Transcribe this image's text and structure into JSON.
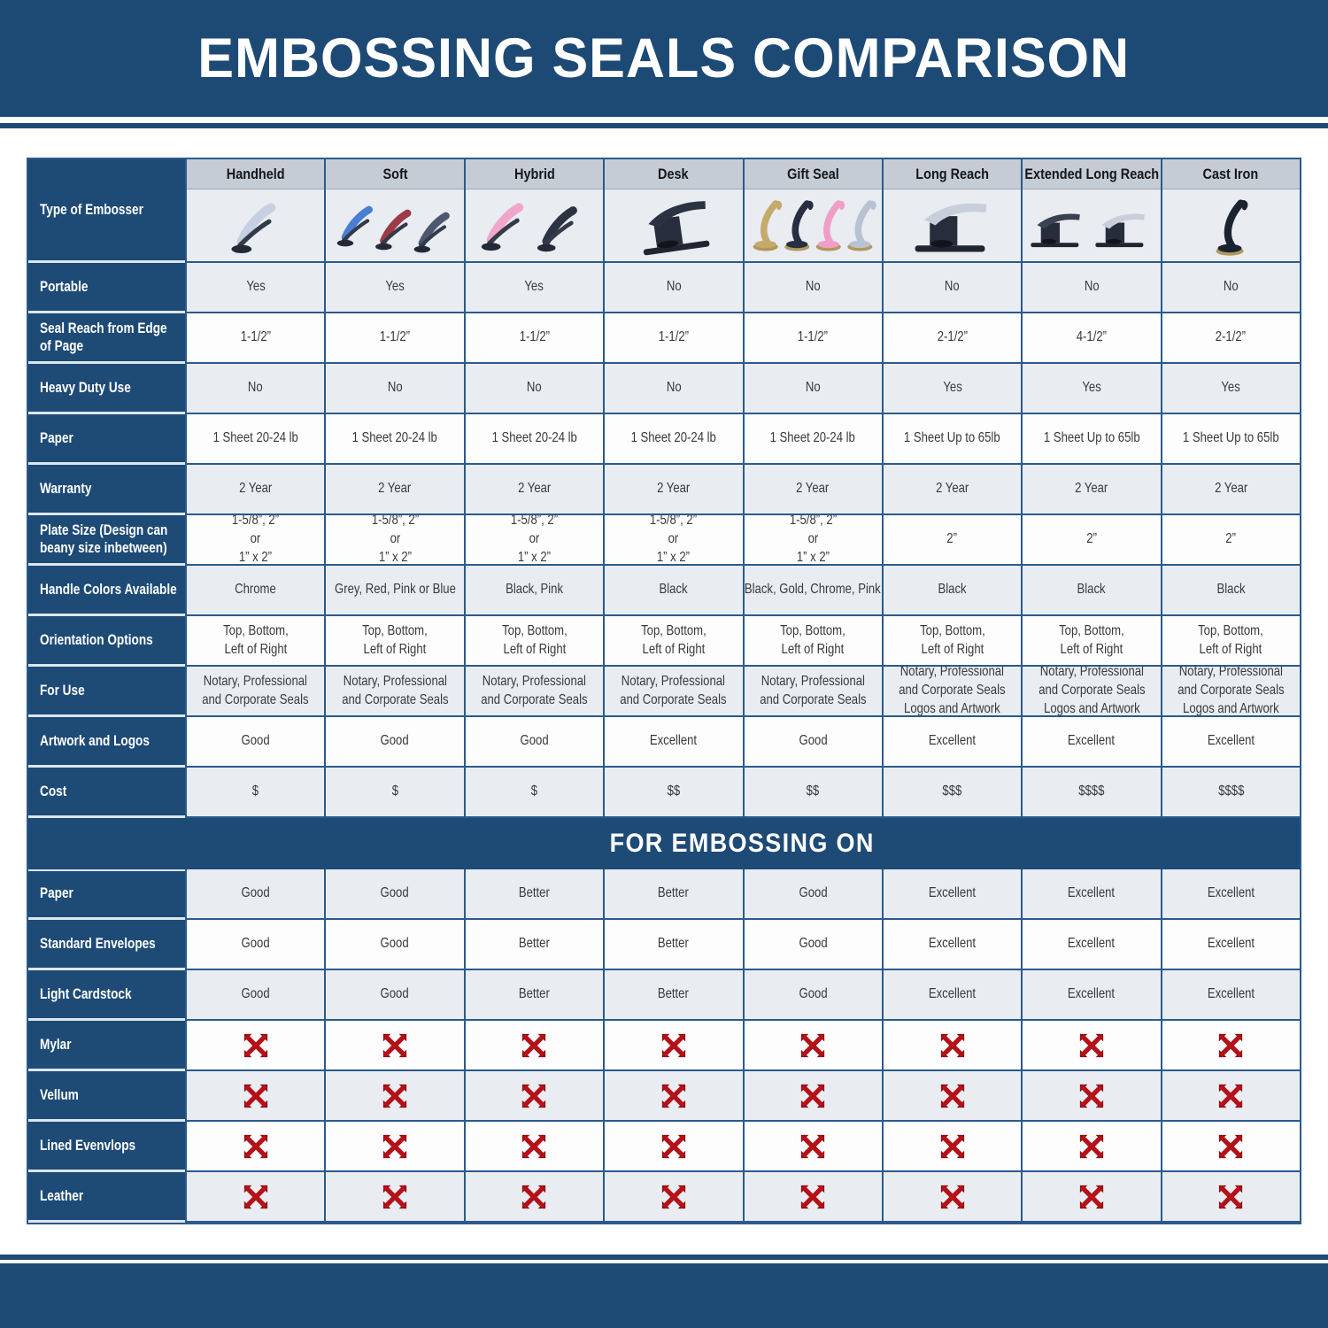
{
  "banner": {
    "title": "EMBOSSING SEALS COMPARISON"
  },
  "table": {
    "corner": "Type of Embosser",
    "columns": [
      {
        "label": "Handheld",
        "image": "handheld-embosser-image"
      },
      {
        "label": "Soft",
        "image": "soft-embosser-image"
      },
      {
        "label": "Hybrid",
        "image": "hybrid-embosser-image"
      },
      {
        "label": "Desk",
        "image": "desk-embosser-image"
      },
      {
        "label": "Gift Seal",
        "image": "gift-seal-embosser-image"
      },
      {
        "label": "Long Reach",
        "image": "long-reach-embosser-image"
      },
      {
        "label": "Extended Long Reach",
        "image": "extended-long-reach-embosser-image"
      },
      {
        "label": "Cast Iron",
        "image": "cast-iron-embosser-image"
      }
    ],
    "spec_rows": [
      {
        "label": "Portable",
        "values": [
          "Yes",
          "Yes",
          "Yes",
          "No",
          "No",
          "No",
          "No",
          "No"
        ]
      },
      {
        "label": "Seal Reach from Edge\nof Page",
        "values": [
          "1-1/2”",
          "1-1/2”",
          "1-1/2”",
          "1-1/2”",
          "1-1/2”",
          "2-1/2”",
          "4-1/2”",
          "2-1/2”"
        ]
      },
      {
        "label": "Heavy Duty Use",
        "values": [
          "No",
          "No",
          "No",
          "No",
          "No",
          "Yes",
          "Yes",
          "Yes"
        ]
      },
      {
        "label": "Paper",
        "values": [
          "1 Sheet 20-24 lb",
          "1 Sheet 20-24 lb",
          "1 Sheet 20-24 lb",
          "1 Sheet 20-24 lb",
          "1 Sheet 20-24 lb",
          "1 Sheet Up to 65lb",
          "1 Sheet Up to 65lb",
          "1 Sheet Up to 65lb"
        ]
      },
      {
        "label": "Warranty",
        "values": [
          "2 Year",
          "2 Year",
          "2 Year",
          "2 Year",
          "2 Year",
          "2 Year",
          "2 Year",
          "2 Year"
        ]
      },
      {
        "label": "Plate Size (Design can\nbeany size inbetween)",
        "values": [
          "1-5/8”, 2”\nor\n1” x 2”",
          "1-5/8”, 2”\nor\n1” x 2”",
          "1-5/8”, 2”\nor\n1” x 2”",
          "1-5/8”, 2”\nor\n1” x 2”",
          "1-5/8”, 2”\nor\n1” x 2”",
          "2”",
          "2”",
          "2”"
        ]
      },
      {
        "label": "Handle Colors Available",
        "values": [
          "Chrome",
          "Grey, Red, Pink or Blue",
          "Black, Pink",
          "Black",
          "Black, Gold, Chrome, Pink",
          "Black",
          "Black",
          "Black"
        ]
      },
      {
        "label": "Orientation Options",
        "values": [
          "Top, Bottom,\nLeft of Right",
          "Top, Bottom,\nLeft of Right",
          "Top, Bottom,\nLeft of Right",
          "Top, Bottom,\nLeft of Right",
          "Top, Bottom,\nLeft of Right",
          "Top, Bottom,\nLeft of Right",
          "Top, Bottom,\nLeft of Right",
          "Top, Bottom,\nLeft of Right"
        ]
      },
      {
        "label": "For Use",
        "values": [
          "Notary, Professional\nand Corporate Seals",
          "Notary, Professional\nand Corporate Seals",
          "Notary, Professional\nand Corporate Seals",
          "Notary, Professional\nand Corporate Seals",
          "Notary, Professional\nand Corporate Seals",
          "Notary, Professional\nand Corporate Seals\nLogos and Artwork",
          "Notary, Professional\nand Corporate Seals\nLogos and Artwork",
          "Notary, Professional\nand Corporate Seals\nLogos and Artwork"
        ]
      },
      {
        "label": "Artwork and Logos",
        "values": [
          "Good",
          "Good",
          "Good",
          "Excellent",
          "Good",
          "Excellent",
          "Excellent",
          "Excellent"
        ]
      },
      {
        "label": "Cost",
        "values": [
          "$",
          "$",
          "$",
          "$$",
          "$$",
          "$$$",
          "$$$$",
          "$$$$"
        ]
      }
    ],
    "section_header": "FOR EMBOSSING ON",
    "embossing_rows": [
      {
        "label": "Paper",
        "values": [
          "Good",
          "Good",
          "Better",
          "Better",
          "Good",
          "Excellent",
          "Excellent",
          "Excellent"
        ]
      },
      {
        "label": "Standard Envelopes",
        "values": [
          "Good",
          "Good",
          "Better",
          "Better",
          "Good",
          "Excellent",
          "Excellent",
          "Excellent"
        ]
      },
      {
        "label": "Light Cardstock",
        "values": [
          "Good",
          "Good",
          "Better",
          "Better",
          "Good",
          "Excellent",
          "Excellent",
          "Excellent"
        ]
      },
      {
        "label": "Mylar",
        "values": [
          "X",
          "X",
          "X",
          "X",
          "X",
          "X",
          "X",
          "X"
        ]
      },
      {
        "label": "Vellum",
        "values": [
          "X",
          "X",
          "X",
          "X",
          "X",
          "X",
          "X",
          "X"
        ]
      },
      {
        "label": "Lined Evenvlops",
        "values": [
          "X",
          "X",
          "X",
          "X",
          "X",
          "X",
          "X",
          "X"
        ]
      },
      {
        "label": "Leather",
        "values": [
          "X",
          "X",
          "X",
          "X",
          "X",
          "X",
          "X",
          "X"
        ]
      }
    ],
    "x_icon": {
      "name": "not-suitable-x-icon",
      "color": "#b41119"
    }
  },
  "colors": {
    "primary_blue": "#1d4a75",
    "border_blue": "#2a5a8e",
    "header_strip_gray": "#c6ccd6",
    "row_shade": "#e9edf2",
    "x_red": "#b41119"
  }
}
